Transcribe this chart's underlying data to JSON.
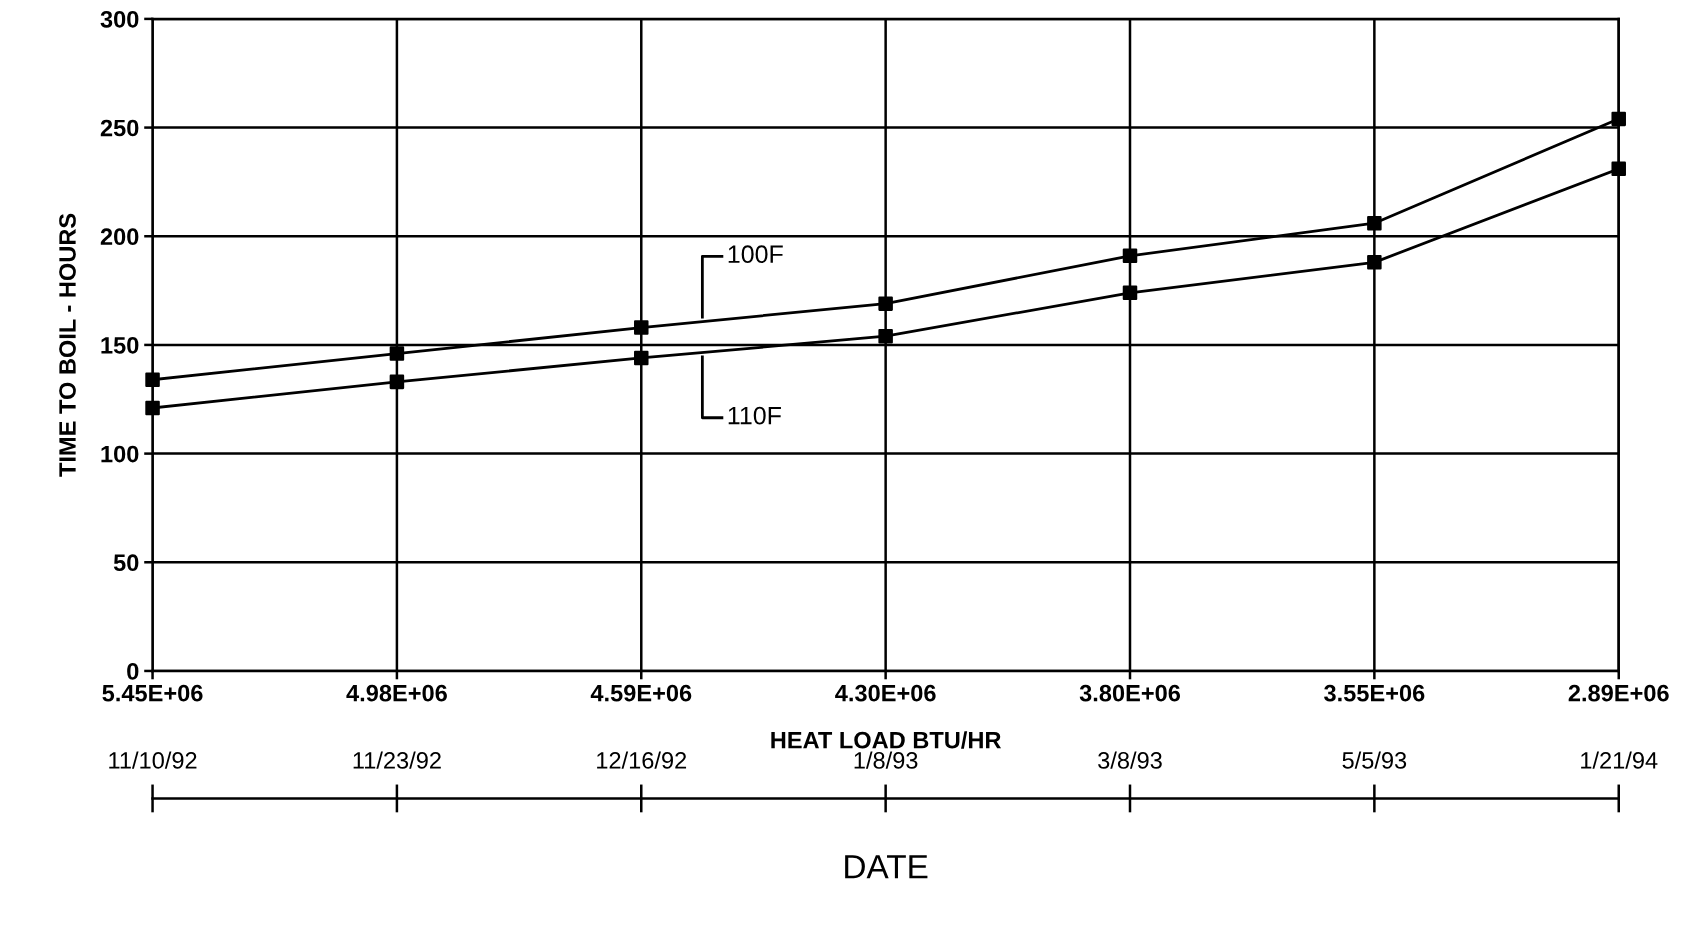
{
  "chart_data": {
    "type": "line",
    "categories": [
      "5.45E+06",
      "4.98E+06",
      "4.59E+06",
      "4.30E+06",
      "3.80E+06",
      "3.55E+06",
      "2.89E+06"
    ],
    "xlabel": "HEAT LOAD BTU/HR",
    "ylabel": "TIME TO BOIL - HOURS",
    "x2label": "DATE",
    "annotations": [
      {
        "text": "11/10/92",
        "x": "5.45E+06"
      },
      {
        "text": "11/23/92",
        "x": "4.98E+06"
      },
      {
        "text": "12/16/92",
        "x": "4.59E+06"
      },
      {
        "text": "1/8/93",
        "x": "4.30E+06"
      },
      {
        "text": "3/8/93",
        "x": "3.80E+06"
      },
      {
        "text": "5/5/93",
        "x": "3.55E+06"
      },
      {
        "text": "1/21/94",
        "x": "2.89E+06"
      }
    ],
    "ylim": [
      0,
      300
    ],
    "yticks": [
      0,
      50,
      100,
      150,
      200,
      250,
      300
    ],
    "grid": true,
    "legend": false,
    "marker": "square",
    "line_style": "solid",
    "series": [
      {
        "name": "100F",
        "color": "#000000",
        "values": [
          134,
          146,
          158,
          169,
          191,
          206,
          254
        ]
      },
      {
        "name": "110F",
        "color": "#000000",
        "values": [
          121,
          133,
          144,
          154,
          174,
          188,
          231
        ]
      }
    ]
  }
}
